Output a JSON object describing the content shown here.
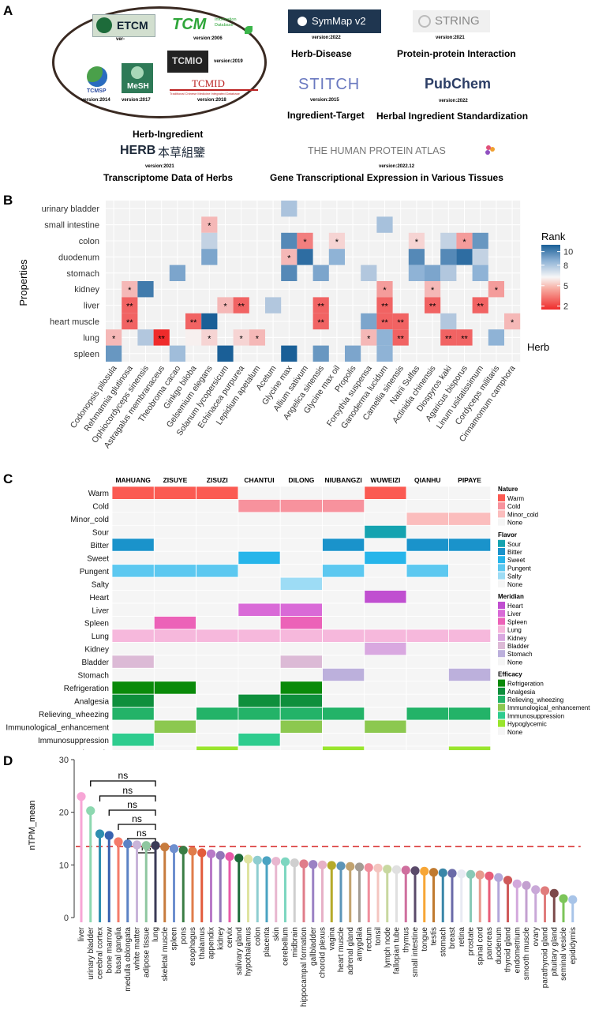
{
  "panel_a": {
    "label": "A",
    "databases": {
      "etcm": {
        "name": "ETCM",
        "version": "ver-"
      },
      "tcm": {
        "name": "TCM",
        "sub": "Information Database",
        "version": "version:2006"
      },
      "tcmio": {
        "name": "TCMIO",
        "version": "version:2019"
      },
      "tcmsp": {
        "name": "TCMSP",
        "version": "version:2014"
      },
      "mesh": {
        "name": "MeSH",
        "version": "version:2017"
      },
      "tcmid": {
        "name": "TCMID",
        "sub": "Traditional Chinese Medicine Integrated Database",
        "version": "version:2018"
      },
      "symmap": {
        "name": "SymMap v2",
        "version": "version:2022"
      },
      "string": {
        "name": "STRING",
        "version": "version:2021"
      },
      "stitch": {
        "name": "STITCH",
        "version": "version:2015"
      },
      "pubchem": {
        "name": "PubChem",
        "version": "version:2022"
      },
      "herb": {
        "name": "HERB",
        "cn": "本草組鑒",
        "version": "version:2021"
      },
      "hpa": {
        "name": "THE HUMAN PROTEIN ATLAS",
        "version": "version:2022.12"
      }
    },
    "captions": {
      "herb_ingredient": "Herb-Ingredient",
      "herb_disease": "Herb-Disease",
      "ppi": "Protein-protein Interaction",
      "ingredient_target": "Ingredient-Target",
      "standardization": "Herbal Ingredient Standardization",
      "transcriptome": "Transcriptome Data of Herbs",
      "gene_expression": "Gene Transcriptional Expression in Various Tissues"
    }
  },
  "panel_b": {
    "label": "B",
    "title": "heatmap"
  },
  "panel_c": {
    "label": "C",
    "title": "feature matrix"
  },
  "panel_d": {
    "label": "D",
    "title": "lollipop"
  },
  "chart_data": [
    {
      "type": "heatmap",
      "title": "",
      "xlabel": "Herb",
      "ylabel": "Properties",
      "rows": [
        "urinary bladder",
        "small intestine",
        "colon",
        "duodenum",
        "stomach",
        "kidney",
        "liver",
        "heart muscle",
        "lung",
        "spleen"
      ],
      "cols": [
        "Codonopsis pilosula",
        "Rehmannia glutinosa",
        "Ophiocordyceps sinensis",
        "Astragalus membranaceus",
        "Theobroma cacao",
        "Ginkgo biloba",
        "Gelsemium elegans",
        "Solanum lycopersicum",
        "Echinacea purpurea",
        "Lepidium apetalum",
        "Acetum",
        "Glycine max",
        "Allium sativum",
        "Angelica sinensis",
        "Glycine max oil",
        "Propolis",
        "Forsythia suspensa",
        "Ganoderma lucidum",
        "Camellia sinensis",
        "Natrii Sulfas",
        "Actinidia chinensis",
        "Diospyros kaki",
        "Agaricus bisporus",
        "Linum usitatissimum",
        "Cordyceps militaris",
        "Cinnamomum camphora"
      ],
      "values": [
        [
          0,
          0,
          0,
          0,
          0,
          0,
          0,
          0,
          0,
          0,
          0,
          7.2,
          0,
          0,
          0,
          0,
          0,
          0,
          0,
          0,
          0,
          0,
          0,
          0,
          0,
          0
        ],
        [
          0,
          0,
          0,
          0,
          0,
          0,
          4,
          0,
          0,
          0,
          0,
          0,
          0,
          0,
          0,
          0,
          0,
          7.3,
          0,
          0,
          0,
          0,
          0,
          0,
          0,
          0
        ],
        [
          0,
          0,
          0,
          0,
          0,
          0,
          6.5,
          0,
          0,
          0,
          0,
          9.5,
          3,
          0,
          4.5,
          0,
          0,
          0,
          0,
          4.5,
          0,
          6.5,
          3.5,
          9,
          0,
          0
        ],
        [
          0,
          0,
          0,
          0,
          0,
          0,
          8.5,
          0,
          0,
          0,
          0,
          4,
          10.5,
          0,
          8,
          0,
          0,
          0,
          0,
          9.5,
          0,
          9.5,
          10.5,
          6.5,
          0,
          0
        ],
        [
          0,
          0,
          0,
          0,
          8.5,
          0,
          0,
          0,
          0,
          0,
          0,
          9.5,
          0,
          8.5,
          0,
          0,
          7,
          0,
          0,
          8,
          8.5,
          7,
          0,
          8,
          0,
          0
        ],
        [
          0,
          4,
          10,
          0,
          0,
          0,
          0,
          0,
          0,
          0,
          0,
          0,
          0,
          0,
          0,
          0,
          0,
          3.5,
          0,
          0,
          4,
          0,
          0,
          0,
          3.5,
          0
        ],
        [
          0,
          2.5,
          0,
          0,
          0,
          0,
          0,
          4,
          2.5,
          0,
          7,
          0,
          0,
          2.5,
          0,
          0,
          0,
          2.5,
          0,
          0,
          2.5,
          0,
          0,
          2.5,
          0,
          0
        ],
        [
          0,
          2.5,
          0,
          0,
          0,
          2.5,
          11,
          0,
          0,
          0,
          0,
          0,
          0,
          2.5,
          0,
          0,
          8.5,
          2.5,
          2.5,
          0,
          0,
          7,
          0,
          0,
          0,
          4
        ],
        [
          4,
          0,
          7,
          1.5,
          0,
          5,
          4.5,
          0,
          4.5,
          4,
          0,
          0,
          0,
          0,
          0,
          0,
          4,
          8,
          2.5,
          0,
          0,
          2.5,
          2.5,
          0,
          8,
          0
        ],
        [
          9,
          0,
          0,
          0,
          7.5,
          0,
          0,
          11,
          0,
          0,
          0,
          11,
          0,
          9,
          0,
          8.5,
          0,
          8,
          0,
          0,
          0,
          0,
          0,
          0,
          0,
          0
        ]
      ],
      "legend_title": "Rank",
      "legend_ticks": [
        10,
        8,
        5,
        2
      ]
    },
    {
      "type": "heatmap",
      "title": "",
      "cols": [
        "MAHUANG",
        "ZISUYE",
        "ZISUZI",
        "CHANTUI",
        "DILONG",
        "NIUBANGZI",
        "WUWEIZI",
        "QIANHU",
        "PIPAYE"
      ],
      "rows": [
        "Warm",
        "Cold",
        "Minor_cold",
        "Sour",
        "Bitter",
        "Sweet",
        "Pungent",
        "Salty",
        "Heart",
        "Liver",
        "Spleen",
        "Lung",
        "Kidney",
        "Bladder",
        "Stomach",
        "Refrigeration",
        "Analgesia",
        "Relieving_wheezing",
        "Immunological_enhancement",
        "Immunosuppression",
        "Hypoglycemic"
      ],
      "groups": [
        "Nature",
        "Flavor",
        "Meridian",
        "Efficacy"
      ],
      "legend": {
        "Nature": [
          {
            "label": "Warm",
            "color": "#fb5a52"
          },
          {
            "label": "Cold",
            "color": "#f7929d"
          },
          {
            "label": "Minor_cold",
            "color": "#fbbdbd"
          },
          {
            "label": "None",
            "color": "#f5f5f5"
          }
        ],
        "Flavor": [
          {
            "label": "Sour",
            "color": "#15a3b0"
          },
          {
            "label": "Bitter",
            "color": "#1a93cb"
          },
          {
            "label": "Sweet",
            "color": "#26b5ea"
          },
          {
            "label": "Pungent",
            "color": "#5cc8f0"
          },
          {
            "label": "Salty",
            "color": "#9ddcf5"
          },
          {
            "label": "None",
            "color": "#f5f5f5"
          }
        ],
        "Meridian": [
          {
            "label": "Heart",
            "color": "#c04fd0"
          },
          {
            "label": "Liver",
            "color": "#d96ad7"
          },
          {
            "label": "Spleen",
            "color": "#ec62b8"
          },
          {
            "label": "Lung",
            "color": "#f6b8dc"
          },
          {
            "label": "Kidney",
            "color": "#d9a8e0"
          },
          {
            "label": "Bladder",
            "color": "#dcbad6"
          },
          {
            "label": "Stomach",
            "color": "#bcb0dc"
          },
          {
            "label": "None",
            "color": "#f5f5f5"
          }
        ],
        "Efficacy": [
          {
            "label": "Refrigeration",
            "color": "#0a8a0a"
          },
          {
            "label": "Analgesia",
            "color": "#0e8f3c"
          },
          {
            "label": "Relieving_wheezing",
            "color": "#23b368"
          },
          {
            "label": "Immunological_enhancement",
            "color": "#8cc84f"
          },
          {
            "label": "Immunosuppression",
            "color": "#2ecc8e"
          },
          {
            "label": "Hypoglycemic",
            "color": "#99e52d"
          },
          {
            "label": "None",
            "color": "#f5f5f5"
          }
        ]
      },
      "cells": [
        [
          "Warm",
          "Warm",
          "Warm",
          "None",
          "None",
          "None",
          "Warm",
          "None",
          "None"
        ],
        [
          "None",
          "None",
          "None",
          "Cold",
          "Cold",
          "Cold",
          "None",
          "None",
          "None"
        ],
        [
          "None",
          "None",
          "None",
          "None",
          "None",
          "None",
          "None",
          "Minor_cold",
          "Minor_cold"
        ],
        [
          "None",
          "None",
          "None",
          "None",
          "None",
          "None",
          "Sour",
          "None",
          "None"
        ],
        [
          "Bitter",
          "None",
          "None",
          "None",
          "None",
          "Bitter",
          "None",
          "Bitter",
          "Bitter"
        ],
        [
          "None",
          "None",
          "None",
          "Sweet",
          "None",
          "None",
          "Sweet",
          "None",
          "None"
        ],
        [
          "Pungent",
          "Pungent",
          "Pungent",
          "None",
          "None",
          "Pungent",
          "None",
          "Pungent",
          "None"
        ],
        [
          "None",
          "None",
          "None",
          "None",
          "Salty",
          "None",
          "None",
          "None",
          "None"
        ],
        [
          "None",
          "None",
          "None",
          "None",
          "None",
          "None",
          "Heart",
          "None",
          "None"
        ],
        [
          "None",
          "None",
          "None",
          "Liver",
          "Liver",
          "None",
          "None",
          "None",
          "None"
        ],
        [
          "None",
          "Spleen",
          "None",
          "None",
          "Spleen",
          "None",
          "None",
          "None",
          "None"
        ],
        [
          "Lung",
          "Lung",
          "Lung",
          "Lung",
          "Lung",
          "Lung",
          "Lung",
          "Lung",
          "Lung"
        ],
        [
          "None",
          "None",
          "None",
          "None",
          "None",
          "None",
          "Kidney",
          "None",
          "None"
        ],
        [
          "Bladder",
          "None",
          "None",
          "None",
          "Bladder",
          "None",
          "None",
          "None",
          "None"
        ],
        [
          "None",
          "None",
          "None",
          "None",
          "None",
          "Stomach",
          "None",
          "None",
          "Stomach"
        ],
        [
          "Refrigeration",
          "Refrigeration",
          "None",
          "None",
          "Refrigeration",
          "None",
          "None",
          "None",
          "None"
        ],
        [
          "Analgesia",
          "None",
          "None",
          "Analgesia",
          "Analgesia",
          "None",
          "None",
          "None",
          "None"
        ],
        [
          "Relieving_wheezing",
          "None",
          "Relieving_wheezing",
          "Relieving_wheezing",
          "Relieving_wheezing",
          "Relieving_wheezing",
          "None",
          "Relieving_wheezing",
          "Relieving_wheezing"
        ],
        [
          "None",
          "Immunological_enhancement",
          "None",
          "None",
          "Immunological_enhancement",
          "None",
          "Immunological_enhancement",
          "None",
          "None"
        ],
        [
          "Immunosuppression",
          "None",
          "None",
          "Immunosuppression",
          "None",
          "None",
          "None",
          "None",
          "None"
        ],
        [
          "None",
          "None",
          "Hypoglycemic",
          "None",
          "None",
          "Hypoglycemic",
          "None",
          "None",
          "Hypoglycemic"
        ]
      ]
    },
    {
      "type": "scatter",
      "title": "",
      "xlabel": "",
      "ylabel": "nTPM_mean",
      "ylim": [
        0,
        30
      ],
      "yticks": [
        0,
        10,
        20,
        30
      ],
      "reference_line": 13.5,
      "significance": [
        {
          "from": "urinary bladder",
          "to": "lung",
          "label": "ns"
        },
        {
          "from": "cerebral cortex",
          "to": "lung",
          "label": "ns"
        },
        {
          "from": "bone marrow",
          "to": "lung",
          "label": "ns"
        },
        {
          "from": "basal ganglia",
          "to": "lung",
          "label": "ns"
        },
        {
          "from": "medulla oblongata",
          "to": "lung",
          "label": "ns"
        },
        {
          "from": "white matter",
          "to": "lung",
          "label": "ns"
        }
      ],
      "categories": [
        "liver",
        "urinary bladder",
        "cerebral cortex",
        "bone marrow",
        "basal ganglia",
        "medulla oblongata",
        "white matter",
        "adipose tissue",
        "lung",
        "skeletal muscle",
        "spleen",
        "pons",
        "esophagus",
        "thalamus",
        "appendix",
        "kidney",
        "cervix",
        "salivary gland",
        "hypothalamus",
        "colon",
        "placenta",
        "skin",
        "cerebellum",
        "midbrain",
        "hippocampal formation",
        "gallbladder",
        "choroid plexus",
        "vagina",
        "heart muscle",
        "adrenal gland",
        "amygdala",
        "rectum",
        "tonsil",
        "lymph node",
        "fallopian tube",
        "thymus",
        "small intestine",
        "tongue",
        "testis",
        "stomach",
        "breast",
        "retina",
        "prostate",
        "spinal cord",
        "pancreas",
        "duodenum",
        "thyroid gland",
        "endometrium",
        "smooth muscle",
        "ovary",
        "parathyroid gland",
        "pituitary gland",
        "seminal vesicle",
        "epididymis"
      ],
      "values": [
        23,
        20.3,
        15.9,
        15.6,
        14.4,
        14,
        13.8,
        13.7,
        13.7,
        13.4,
        13.1,
        12.8,
        12.6,
        12.3,
        12.1,
        11.8,
        11.6,
        11.3,
        11.1,
        10.9,
        10.8,
        10.7,
        10.6,
        10.4,
        10.2,
        10.1,
        10,
        9.9,
        9.8,
        9.7,
        9.6,
        9.5,
        9.4,
        9.2,
        9.1,
        9,
        8.9,
        8.8,
        8.6,
        8.5,
        8.4,
        8.3,
        8.2,
        8.1,
        7.9,
        7.6,
        7.1,
        6.4,
        6.1,
        5.3,
        5.1,
        4.6,
        3.6,
        3.4
      ],
      "colors": [
        "#f7a6d6",
        "#8dd8b0",
        "#2f8fb0",
        "#3862b0",
        "#f47b6a",
        "#5c82c5",
        "#c9b4d9",
        "#8fc7a0",
        "#3a3a56",
        "#c77b3d",
        "#6e8fcf",
        "#3a7d44",
        "#e07c4a",
        "#e25b3c",
        "#b97ac8",
        "#9276b8",
        "#e85aa8",
        "#1e6b3a",
        "#dfe3a0",
        "#8ecdd0",
        "#4aa3c2",
        "#e8b6cf",
        "#7dd6c0",
        "#cfcfcf",
        "#e07d8a",
        "#9b82c4",
        "#e7b1c7",
        "#b5aa2a",
        "#5c95b8",
        "#c2a36f",
        "#a39c94",
        "#f08e9c",
        "#f4c5c0",
        "#c8d8a0",
        "#e0e0e0",
        "#cf6f9e",
        "#5a4a6a",
        "#f7a636",
        "#c07a30",
        "#3a86a8",
        "#6a6aa8",
        "#e8eaf3",
        "#89c9b6",
        "#e89a8e",
        "#e85d78",
        "#b3a6d9",
        "#cf5a5a",
        "#d2a8dc",
        "#c3a0d0",
        "#c9a8d8",
        "#e07c7c",
        "#7c4a4a",
        "#7cc55a",
        "#a8c4e8"
      ]
    }
  ]
}
